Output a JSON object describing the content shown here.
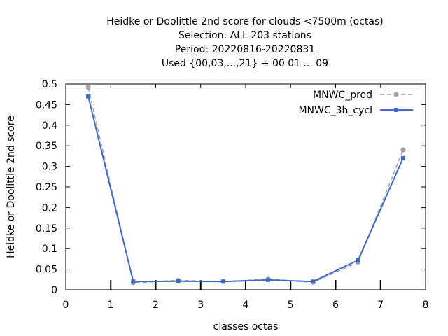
{
  "chart_data": {
    "type": "line",
    "title_lines": [
      "Heidke or Doolittle 2nd score  for clouds <7500m (octas)",
      "Selection: ALL    203 stations",
      "Period: 20220816-20220831",
      "Used {00,03,...,21} + 00 01 ... 09"
    ],
    "xlabel": "classes octas",
    "ylabel": "Heidke or Doolittle 2nd score",
    "xlim": [
      0,
      8
    ],
    "ylim": [
      0,
      0.5
    ],
    "x_ticks": [
      0,
      1,
      2,
      3,
      4,
      5,
      6,
      7,
      8
    ],
    "x_tick_labels": [
      "0",
      "1",
      "2",
      "3",
      "4",
      "5",
      "6",
      "7",
      "8"
    ],
    "y_ticks": [
      0,
      0.05,
      0.1,
      0.15,
      0.2,
      0.25,
      0.3,
      0.35,
      0.4,
      0.45,
      0.5
    ],
    "y_tick_labels": [
      "0",
      "0.05",
      "0.1",
      "0.15",
      "0.2",
      "0.25",
      "0.3",
      "0.35",
      "0.4",
      "0.45",
      "0.5"
    ],
    "bottom_marker_x": [
      1,
      2,
      3,
      4,
      5,
      6,
      7
    ],
    "legend_position": "top-right",
    "series": [
      {
        "name": "MNWC_prod",
        "color": "#a0a0a0",
        "style": "dashed",
        "x": [
          0.5,
          1.5,
          2.5,
          3.5,
          4.5,
          5.5,
          6.5,
          7.5
        ],
        "y": [
          0.492,
          0.017,
          0.023,
          0.02,
          0.026,
          0.018,
          0.067,
          0.34
        ]
      },
      {
        "name": "MNWC_3h_cycl",
        "color": "#4169c8",
        "style": "solid",
        "x": [
          0.5,
          1.5,
          2.5,
          3.5,
          4.5,
          5.5,
          6.5,
          7.5
        ],
        "y": [
          0.47,
          0.02,
          0.021,
          0.02,
          0.024,
          0.02,
          0.072,
          0.32
        ]
      }
    ]
  }
}
